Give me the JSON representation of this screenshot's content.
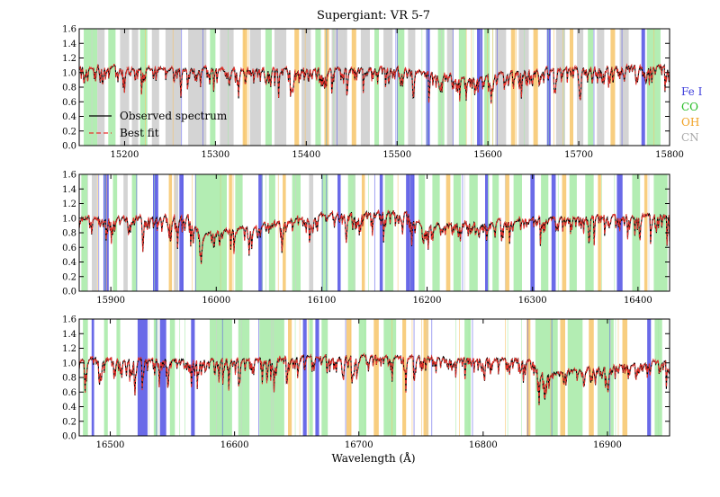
{
  "chart_data": {
    "type": "line",
    "title": "Supergiant: VR 5-7",
    "xlabel": "Wavelength (Å)",
    "ylabel": "",
    "legend": {
      "placement": "lower-left of top panel",
      "entries": [
        {
          "label": "Observed spectrum",
          "color": "#000000",
          "style": "solid"
        },
        {
          "label": "Best fit",
          "color": "#e8322b",
          "style": "dashed"
        }
      ]
    },
    "line_species": [
      {
        "label": "Fe I",
        "color": "#3b3bdb"
      },
      {
        "label": "CO",
        "color": "#22bb22"
      },
      {
        "label": "OH",
        "color": "#f0a020"
      },
      {
        "label": "CN",
        "color": "#a8a8a8"
      }
    ],
    "colors": {
      "observed": "#000000",
      "fit": "#e8322b",
      "fe_band": "#5a5ae6",
      "co_band": "#a6eaa6",
      "oh_band": "#f7c56a",
      "cn_band": "#cfcfcf"
    },
    "panels": [
      {
        "xlim": [
          15150,
          15800
        ],
        "ylim": [
          0.0,
          1.6
        ],
        "xticks": [
          "15200",
          "15300",
          "15400",
          "15500",
          "15600",
          "15700",
          "15800"
        ],
        "yticks": [
          "0.0",
          "0.2",
          "0.4",
          "0.6",
          "0.8",
          "1.0",
          "1.2",
          "1.4",
          "1.6"
        ],
        "continuum": [
          [
            15150,
            1.08
          ],
          [
            15300,
            1.05
          ],
          [
            15500,
            1.06
          ],
          [
            15580,
            0.92
          ],
          [
            15650,
            1.05
          ],
          [
            15800,
            1.1
          ]
        ],
        "bands": [
          {
            "s": "CO",
            "x": [
              15155,
              15170
            ]
          },
          {
            "s": "CN",
            "x": [
              15170,
              15178
            ]
          },
          {
            "s": "CO",
            "x": [
              15182,
              15190
            ]
          },
          {
            "s": "CN",
            "x": [
              15195,
              15205
            ]
          },
          {
            "s": "CN",
            "x": [
              15208,
              15215
            ]
          },
          {
            "s": "CO",
            "x": [
              15217,
              15225
            ]
          },
          {
            "s": "CN",
            "x": [
              15230,
              15238
            ]
          },
          {
            "s": "CN",
            "x": [
              15245,
              15262
            ]
          },
          {
            "s": "CN",
            "x": [
              15270,
              15290
            ]
          },
          {
            "s": "CO",
            "x": [
              15294,
              15300
            ]
          },
          {
            "s": "CN",
            "x": [
              15305,
              15320
            ]
          },
          {
            "s": "OH",
            "x": [
              15330,
              15335
            ]
          },
          {
            "s": "CN",
            "x": [
              15338,
              15350
            ]
          },
          {
            "s": "CO",
            "x": [
              15355,
              15362
            ]
          },
          {
            "s": "CN",
            "x": [
              15365,
              15378
            ]
          },
          {
            "s": "OH",
            "x": [
              15387,
              15392
            ]
          },
          {
            "s": "CN",
            "x": [
              15395,
              15405
            ]
          },
          {
            "s": "CO",
            "x": [
              15410,
              15416
            ]
          },
          {
            "s": "OH",
            "x": [
              15420,
              15425
            ]
          },
          {
            "s": "CN",
            "x": [
              15428,
              15445
            ]
          },
          {
            "s": "OH",
            "x": [
              15450,
              15455
            ]
          },
          {
            "s": "CN",
            "x": [
              15460,
              15470
            ]
          },
          {
            "s": "CO",
            "x": [
              15475,
              15480
            ]
          },
          {
            "s": "CN",
            "x": [
              15485,
              15495
            ]
          },
          {
            "s": "CO",
            "x": [
              15500,
              15508
            ]
          },
          {
            "s": "CN",
            "x": [
              15512,
              15520
            ]
          },
          {
            "s": "Fe I",
            "x": [
              15532,
              15536
            ]
          },
          {
            "s": "CO",
            "x": [
              15545,
              15552
            ]
          },
          {
            "s": "CN",
            "x": [
              15555,
              15562
            ]
          },
          {
            "s": "CO",
            "x": [
              15568,
              15576
            ]
          },
          {
            "s": "Fe I",
            "x": [
              15588,
              15594
            ]
          },
          {
            "s": "CO",
            "x": [
              15596,
              15602
            ]
          },
          {
            "s": "CN",
            "x": [
              15608,
              15620
            ]
          },
          {
            "s": "OH",
            "x": [
              15626,
              15630
            ]
          },
          {
            "s": "CN",
            "x": [
              15634,
              15645
            ]
          },
          {
            "s": "OH",
            "x": [
              15650,
              15655
            ]
          },
          {
            "s": "Fe I",
            "x": [
              15665,
              15669
            ]
          },
          {
            "s": "CN",
            "x": [
              15675,
              15685
            ]
          },
          {
            "s": "OH",
            "x": [
              15690,
              15694
            ]
          },
          {
            "s": "CN",
            "x": [
              15698,
              15705
            ]
          },
          {
            "s": "CO",
            "x": [
              15710,
              15716
            ]
          },
          {
            "s": "CN",
            "x": [
              15720,
              15728
            ]
          },
          {
            "s": "OH",
            "x": [
              15735,
              15740
            ]
          },
          {
            "s": "CN",
            "x": [
              15745,
              15755
            ]
          },
          {
            "s": "Fe I",
            "x": [
              15769,
              15773
            ]
          },
          {
            "s": "CO",
            "x": [
              15775,
              15790
            ]
          }
        ]
      },
      {
        "xlim": [
          15870,
          16430
        ],
        "ylim": [
          0.0,
          1.6
        ],
        "xticks": [
          "15900",
          "16000",
          "16100",
          "16200",
          "16300",
          "16400"
        ],
        "yticks": [
          "0.0",
          "0.2",
          "0.4",
          "0.6",
          "0.8",
          "1.0",
          "1.2",
          "1.4",
          "1.6"
        ],
        "continuum": [
          [
            15870,
            1.0
          ],
          [
            15975,
            1.03
          ],
          [
            15985,
            0.78
          ],
          [
            16100,
            1.05
          ],
          [
            16180,
            1.1
          ],
          [
            16195,
            0.9
          ],
          [
            16300,
            1.0
          ],
          [
            16430,
            1.05
          ]
        ],
        "bands": [
          {
            "s": "CO",
            "x": [
              15872,
              15878
            ]
          },
          {
            "s": "CN",
            "x": [
              15882,
              15887
            ]
          },
          {
            "s": "Fe I",
            "x": [
              15893,
              15898
            ]
          },
          {
            "s": "CO",
            "x": [
              15902,
              15906
            ]
          },
          {
            "s": "CN",
            "x": [
              15912,
              15916
            ]
          },
          {
            "s": "CO",
            "x": [
              15920,
              15925
            ]
          },
          {
            "s": "Fe I",
            "x": [
              15940,
              15945
            ]
          },
          {
            "s": "OH",
            "x": [
              15955,
              15958
            ]
          },
          {
            "s": "CN",
            "x": [
              15960,
              15964
            ]
          },
          {
            "s": "Fe I",
            "x": [
              15965,
              15969
            ]
          },
          {
            "s": "CO",
            "x": [
              15980,
              16010
            ]
          },
          {
            "s": "OH",
            "x": [
              16012,
              16015
            ]
          },
          {
            "s": "CO",
            "x": [
              16018,
              16025
            ]
          },
          {
            "s": "Fe I",
            "x": [
              16040,
              16044
            ]
          },
          {
            "s": "CO",
            "x": [
              16050,
              16056
            ]
          },
          {
            "s": "OH",
            "x": [
              16063,
              16066
            ]
          },
          {
            "s": "CO",
            "x": [
              16072,
              16080
            ]
          },
          {
            "s": "CN",
            "x": [
              16088,
              16092
            ]
          },
          {
            "s": "CO",
            "x": [
              16100,
              16106
            ]
          },
          {
            "s": "Fe I",
            "x": [
              16115,
              16118
            ]
          },
          {
            "s": "CO",
            "x": [
              16125,
              16132
            ]
          },
          {
            "s": "OH",
            "x": [
              16138,
              16141
            ]
          },
          {
            "s": "Fe I",
            "x": [
              16155,
              16158
            ]
          },
          {
            "s": "CO",
            "x": [
              16160,
              16168
            ]
          },
          {
            "s": "Fe I",
            "x": [
              16180,
              16188
            ]
          },
          {
            "s": "CO",
            "x": [
              16192,
              16198
            ]
          },
          {
            "s": "CO",
            "x": [
              16205,
              16212
            ]
          },
          {
            "s": "OH",
            "x": [
              16218,
              16222
            ]
          },
          {
            "s": "CO",
            "x": [
              16225,
              16232
            ]
          },
          {
            "s": "CO",
            "x": [
              16240,
              16248
            ]
          },
          {
            "s": "Fe I",
            "x": [
              16255,
              16258
            ]
          },
          {
            "s": "CO",
            "x": [
              16262,
              16268
            ]
          },
          {
            "s": "OH",
            "x": [
              16274,
              16278
            ]
          },
          {
            "s": "CO",
            "x": [
              16282,
              16290
            ]
          },
          {
            "s": "Fe I",
            "x": [
              16298,
              16302
            ]
          },
          {
            "s": "CO",
            "x": [
              16308,
              16315
            ]
          },
          {
            "s": "Fe I",
            "x": [
              16318,
              16322
            ]
          },
          {
            "s": "OH",
            "x": [
              16328,
              16332
            ]
          },
          {
            "s": "CO",
            "x": [
              16335,
              16342
            ]
          },
          {
            "s": "CO",
            "x": [
              16350,
              16358
            ]
          },
          {
            "s": "OH",
            "x": [
              16362,
              16365
            ]
          },
          {
            "s": "Fe I",
            "x": [
              16380,
              16385
            ]
          },
          {
            "s": "CO",
            "x": [
              16395,
              16402
            ]
          },
          {
            "s": "OH",
            "x": [
              16406,
              16409
            ]
          },
          {
            "s": "CO",
            "x": [
              16415,
              16428
            ]
          }
        ]
      },
      {
        "xlim": [
          16475,
          16950
        ],
        "ylim": [
          0.0,
          1.6
        ],
        "xticks": [
          "16500",
          "16600",
          "16700",
          "16800",
          "16900"
        ],
        "yticks": [
          "0.0",
          "0.2",
          "0.4",
          "0.6",
          "0.8",
          "1.0",
          "1.2",
          "1.4",
          "1.6"
        ],
        "continuum": [
          [
            16475,
            1.05
          ],
          [
            16600,
            1.05
          ],
          [
            16700,
            1.1
          ],
          [
            16840,
            1.05
          ],
          [
            16845,
            0.85
          ],
          [
            16950,
            1.05
          ]
        ],
        "bands": [
          {
            "s": "CO",
            "x": [
              16478,
              16482
            ]
          },
          {
            "s": "Fe I",
            "x": [
              16485,
              16487
            ]
          },
          {
            "s": "CO",
            "x": [
              16495,
              16498
            ]
          },
          {
            "s": "CO",
            "x": [
              16505,
              16508
            ]
          },
          {
            "s": "Fe I",
            "x": [
              16522,
              16530
            ]
          },
          {
            "s": "CO",
            "x": [
              16535,
              16538
            ]
          },
          {
            "s": "Fe I",
            "x": [
              16540,
              16545
            ]
          },
          {
            "s": "CO",
            "x": [
              16548,
              16552
            ]
          },
          {
            "s": "Fe I",
            "x": [
              16565,
              16568
            ]
          },
          {
            "s": "CO",
            "x": [
              16580,
              16598
            ]
          },
          {
            "s": "CO",
            "x": [
              16603,
              16612
            ]
          },
          {
            "s": "CO",
            "x": [
              16620,
              16640
            ]
          },
          {
            "s": "OH",
            "x": [
              16643,
              16646
            ]
          },
          {
            "s": "Fe I",
            "x": [
              16655,
              16658
            ]
          },
          {
            "s": "CO",
            "x": [
              16660,
              16663
            ]
          },
          {
            "s": "Fe I",
            "x": [
              16665,
              16668
            ]
          },
          {
            "s": "CO",
            "x": [
              16670,
              16675
            ]
          },
          {
            "s": "OH",
            "x": [
              16690,
              16694
            ]
          },
          {
            "s": "CO",
            "x": [
              16700,
              16706
            ]
          },
          {
            "s": "OH",
            "x": [
              16712,
              16716
            ]
          },
          {
            "s": "CO",
            "x": [
              16720,
              16730
            ]
          },
          {
            "s": "OH",
            "x": [
              16735,
              16738
            ]
          },
          {
            "s": "OH",
            "x": [
              16752,
              16756
            ]
          },
          {
            "s": "CO",
            "x": [
              16785,
              16790
            ]
          },
          {
            "s": "OH",
            "x": [
              16835,
              16838
            ]
          },
          {
            "s": "CO",
            "x": [
              16842,
              16860
            ]
          },
          {
            "s": "OH",
            "x": [
              16862,
              16866
            ]
          },
          {
            "s": "CO",
            "x": [
              16868,
              16880
            ]
          },
          {
            "s": "OH",
            "x": [
              16885,
              16889
            ]
          },
          {
            "s": "CO",
            "x": [
              16892,
              16905
            ]
          },
          {
            "s": "OH",
            "x": [
              16912,
              16916
            ]
          },
          {
            "s": "Fe I",
            "x": [
              16932,
              16935
            ]
          },
          {
            "s": "CO",
            "x": [
              16938,
              16944
            ]
          }
        ]
      }
    ]
  }
}
